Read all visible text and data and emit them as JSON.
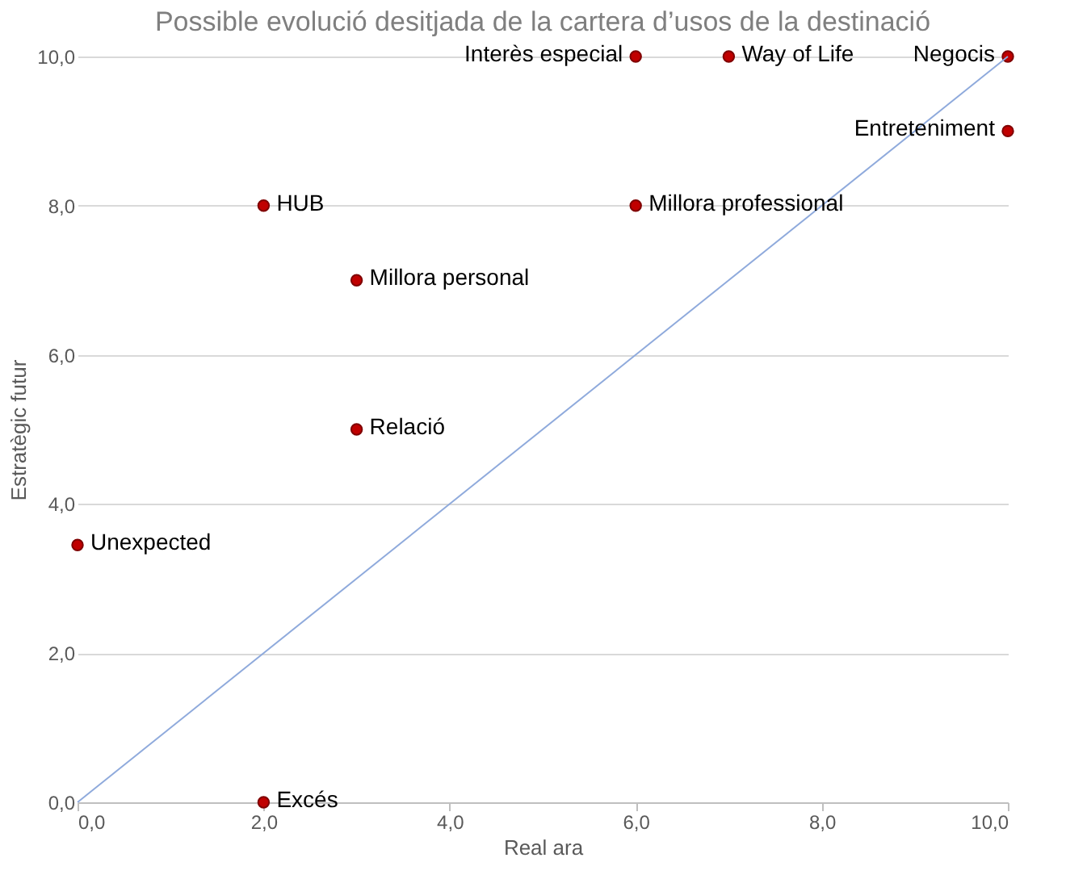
{
  "chart_data": {
    "type": "scatter",
    "title": "Possible evolució desitjada de la cartera d’usos de la destinació",
    "xlabel": "Real ara",
    "ylabel": "Estratègic futur",
    "x": [
      0,
      2,
      3,
      3,
      6,
      6,
      7,
      10,
      10,
      2
    ],
    "series": [
      {
        "color": "#c00000",
        "values": [
          3.45,
          8,
          7,
          5,
          10,
          8,
          10,
          10,
          9,
          0
        ],
        "marker": "circle"
      },
      {
        "type": "line",
        "color": "#8faadc",
        "x": [
          0,
          10
        ],
        "values": [
          0,
          10
        ],
        "marker": "none"
      }
    ],
    "annotations": [
      {
        "text": "Unexpected",
        "x": 0,
        "y": 3.45
      },
      {
        "text": "HUB",
        "x": 2,
        "y": 8
      },
      {
        "text": "Millora personal",
        "x": 3,
        "y": 7
      },
      {
        "text": "Relació",
        "x": 3,
        "y": 5
      },
      {
        "text": "Interès especial",
        "x": 6,
        "y": 10
      },
      {
        "text": "Millora professional",
        "x": 6,
        "y": 8
      },
      {
        "text": "Way of Life",
        "x": 7,
        "y": 10
      },
      {
        "text": "Negocis",
        "x": 10,
        "y": 10
      },
      {
        "text": "Entreteniment",
        "x": 10,
        "y": 9
      },
      {
        "text": "Excés",
        "x": 2,
        "y": 0
      }
    ],
    "xlim": [
      0,
      10
    ],
    "ylim": [
      0,
      10
    ],
    "xticks": [
      {
        "value": 0,
        "label": "0,0"
      },
      {
        "value": 2,
        "label": "2,0"
      },
      {
        "value": 4,
        "label": "4,0"
      },
      {
        "value": 6,
        "label": "6,0"
      },
      {
        "value": 8,
        "label": "8,0"
      },
      {
        "value": 10,
        "label": "10,0"
      }
    ],
    "yticks": [
      {
        "value": 0,
        "label": "0,0"
      },
      {
        "value": 2,
        "label": "2,0"
      },
      {
        "value": 4,
        "label": "4,0"
      },
      {
        "value": 6,
        "label": "6,0"
      },
      {
        "value": 8,
        "label": "8,0"
      },
      {
        "value": 10,
        "label": "10,0"
      }
    ],
    "grid": "y"
  }
}
